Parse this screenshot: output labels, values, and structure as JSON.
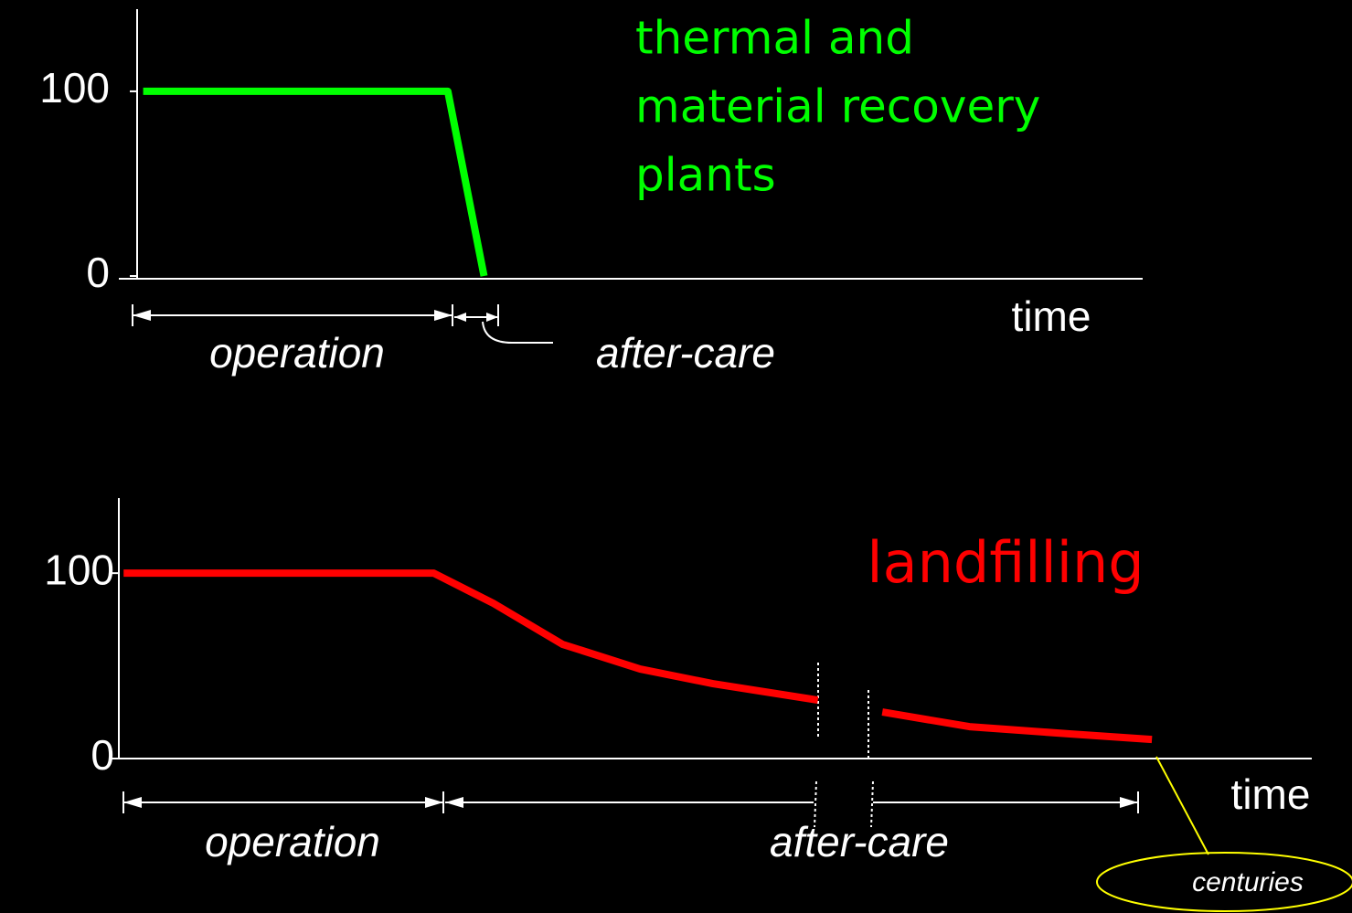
{
  "chart_data": [
    {
      "type": "line",
      "title": [
        "thermal and",
        "material recovery",
        "plants"
      ],
      "x_label": "time",
      "annotations": [
        "operation",
        "after-care"
      ],
      "x": [
        0.6,
        30.9,
        34.5
      ],
      "series": [
        {
          "color": "#00ff00",
          "values": [
            100,
            100,
            0
          ]
        }
      ],
      "xlim": [
        0,
        100
      ],
      "ylim": [
        0,
        145
      ],
      "yticks": [
        0,
        100
      ]
    },
    {
      "type": "line",
      "title": "landfilling",
      "x_label": "time",
      "annotations": [
        "operation",
        "after-care",
        "centuries"
      ],
      "x": [
        0.4,
        26.4,
        31.4,
        37.2,
        43.7,
        49.8,
        58.6,
        60.7,
        64,
        71.3,
        79.7,
        86.6
      ],
      "series": [
        {
          "color": "#ff0000",
          "values": [
            100,
            100,
            83.7,
            61.6,
            48.3,
            40.4,
            31.5,
            null,
            25.1,
            17.2,
            13.3,
            10.3
          ]
        }
      ],
      "xlim": [
        0,
        100
      ],
      "ylim": [
        0,
        140
      ],
      "yticks": [
        0,
        100
      ]
    }
  ]
}
